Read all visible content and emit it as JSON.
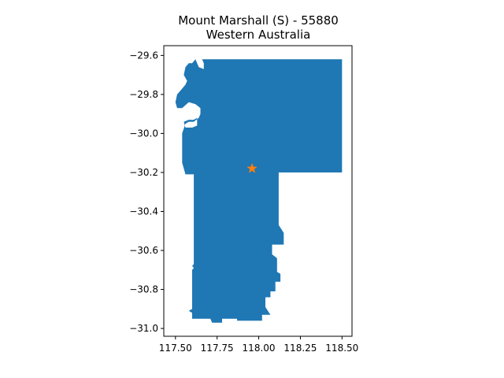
{
  "title": {
    "line1": "Mount Marshall (S) - 55880",
    "line2": "Western Australia"
  },
  "colors": {
    "region_fill": "#1f77b4",
    "marker": "#ff7f0e",
    "axes": "#000000",
    "background": "#ffffff"
  },
  "chart_data": {
    "type": "map",
    "xlim": [
      117.43,
      118.56
    ],
    "ylim": [
      -31.04,
      -29.55
    ],
    "x_ticks": [
      117.5,
      117.75,
      118.0,
      118.25,
      118.5
    ],
    "x_tick_labels": [
      "117.50",
      "117.75",
      "118.00",
      "118.25",
      "118.50"
    ],
    "y_ticks": [
      -29.6,
      -29.8,
      -30.0,
      -30.2,
      -30.4,
      -30.6,
      -30.8,
      -31.0
    ],
    "y_tick_labels": [
      "−29.6",
      "−29.8",
      "−30.0",
      "−30.2",
      "−30.4",
      "−30.6",
      "−30.8",
      "−31.0"
    ],
    "grid": false,
    "region": {
      "name": "Mount Marshall (S)",
      "outline": [
        [
          117.66,
          -29.62
        ],
        [
          118.5,
          -29.62
        ],
        [
          118.5,
          -30.2
        ],
        [
          118.12,
          -30.2
        ],
        [
          118.12,
          -30.47
        ],
        [
          118.15,
          -30.51
        ],
        [
          118.15,
          -30.57
        ],
        [
          118.08,
          -30.57
        ],
        [
          118.08,
          -30.62
        ],
        [
          118.11,
          -30.64
        ],
        [
          118.11,
          -30.71
        ],
        [
          118.13,
          -30.72
        ],
        [
          118.13,
          -30.76
        ],
        [
          118.1,
          -30.76
        ],
        [
          118.1,
          -30.81
        ],
        [
          118.07,
          -30.81
        ],
        [
          118.07,
          -30.84
        ],
        [
          118.04,
          -30.84
        ],
        [
          118.04,
          -30.89
        ],
        [
          118.07,
          -30.93
        ],
        [
          118.02,
          -30.93
        ],
        [
          118.02,
          -30.96
        ],
        [
          117.87,
          -30.96
        ],
        [
          117.87,
          -30.95
        ],
        [
          117.78,
          -30.95
        ],
        [
          117.78,
          -30.97
        ],
        [
          117.72,
          -30.97
        ],
        [
          117.71,
          -30.95
        ],
        [
          117.6,
          -30.95
        ],
        [
          117.6,
          -30.92
        ],
        [
          117.58,
          -30.91
        ],
        [
          117.6,
          -30.9
        ],
        [
          117.6,
          -30.7
        ],
        [
          117.61,
          -30.69
        ],
        [
          117.6,
          -30.68
        ],
        [
          117.61,
          -30.67
        ],
        [
          117.61,
          -30.21
        ],
        [
          117.56,
          -30.21
        ],
        [
          117.54,
          -30.15
        ],
        [
          117.54,
          -30.0
        ],
        [
          117.56,
          -29.95
        ],
        [
          117.58,
          -29.94
        ],
        [
          117.61,
          -29.94
        ],
        [
          117.64,
          -29.92
        ],
        [
          117.65,
          -29.9
        ],
        [
          117.65,
          -29.87
        ],
        [
          117.62,
          -29.85
        ],
        [
          117.58,
          -29.84
        ],
        [
          117.54,
          -29.87
        ],
        [
          117.51,
          -29.87
        ],
        [
          117.5,
          -29.84
        ],
        [
          117.51,
          -29.8
        ],
        [
          117.53,
          -29.78
        ],
        [
          117.56,
          -29.75
        ],
        [
          117.57,
          -29.73
        ],
        [
          117.55,
          -29.7
        ],
        [
          117.56,
          -29.66
        ],
        [
          117.58,
          -29.64
        ],
        [
          117.6,
          -29.64
        ],
        [
          117.62,
          -29.62
        ],
        [
          117.64,
          -29.66
        ],
        [
          117.67,
          -29.67
        ],
        [
          117.67,
          -29.64
        ]
      ],
      "hole": [
        [
          117.55,
          -29.94
        ],
        [
          117.58,
          -29.93
        ],
        [
          117.61,
          -29.93
        ],
        [
          117.63,
          -29.92
        ],
        [
          117.63,
          -29.96
        ],
        [
          117.6,
          -29.97
        ],
        [
          117.56,
          -29.97
        ]
      ]
    },
    "marker": {
      "shape": "star",
      "x": 117.96,
      "y": -30.18
    }
  }
}
